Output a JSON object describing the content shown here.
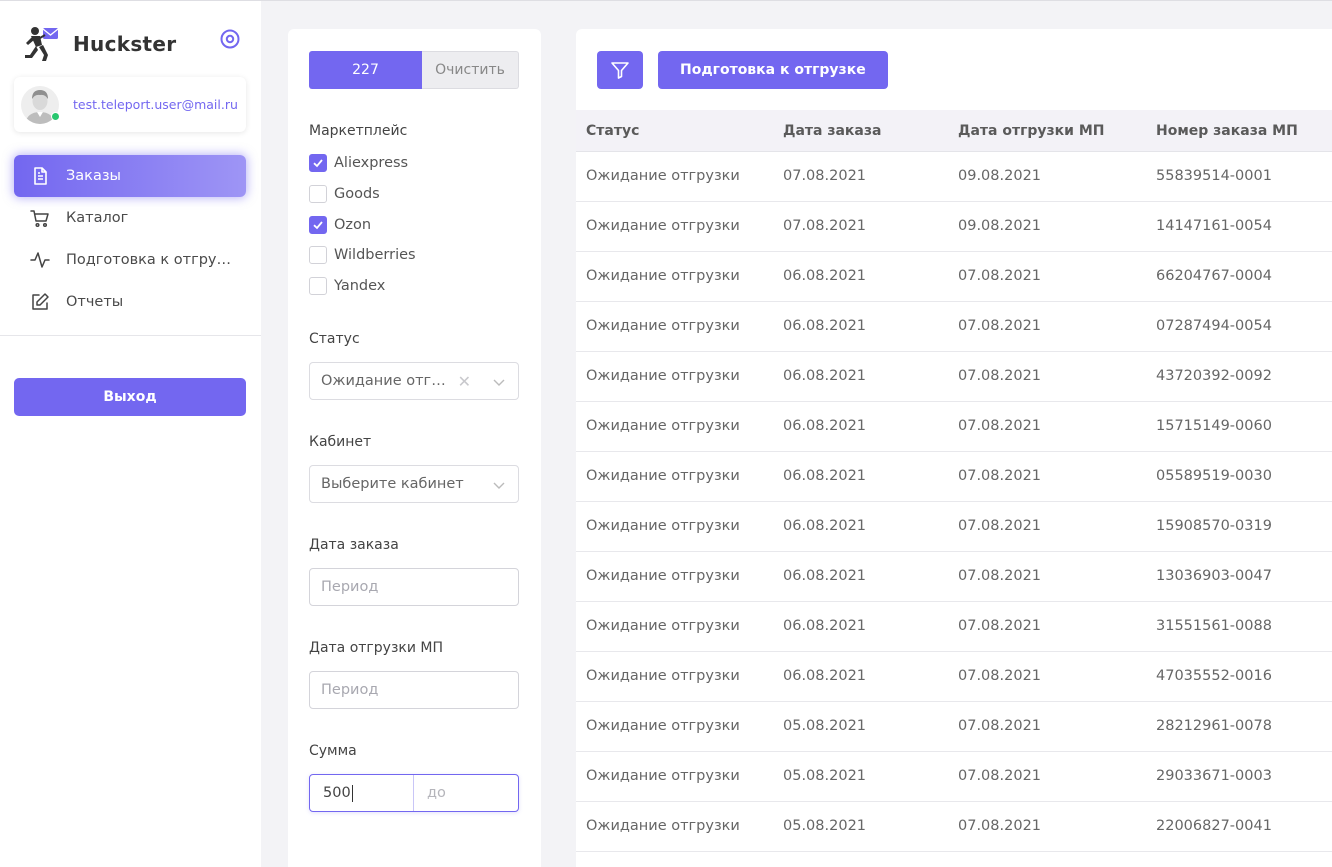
{
  "app": {
    "name": "Huckster"
  },
  "user": {
    "email": "test.teleport.user@mail.ru"
  },
  "nav": {
    "items": [
      {
        "label": "Заказы",
        "icon": "document-icon",
        "active": true
      },
      {
        "label": "Каталог",
        "icon": "cart-icon"
      },
      {
        "label": "Подготовка к отгрузке",
        "icon": "activity-icon"
      },
      {
        "label": "Отчеты",
        "icon": "edit-icon"
      }
    ],
    "logout_label": "Выход"
  },
  "filters": {
    "count_label": "227",
    "clear_label": "Очистить",
    "marketplace": {
      "label": "Маркетплейс",
      "options": [
        {
          "label": "Aliexpress",
          "checked": true
        },
        {
          "label": "Goods",
          "checked": false
        },
        {
          "label": "Ozon",
          "checked": true
        },
        {
          "label": "Wildberries",
          "checked": false
        },
        {
          "label": "Yandex",
          "checked": false
        }
      ]
    },
    "status": {
      "label": "Статус",
      "value": "Ожидание отгрузки"
    },
    "cabinet": {
      "label": "Кабинет",
      "placeholder": "Выберите кабинет"
    },
    "order_date": {
      "label": "Дата заказа",
      "placeholder": "Период"
    },
    "ship_date": {
      "label": "Дата отгрузки МП",
      "placeholder": "Период"
    },
    "amount": {
      "label": "Сумма",
      "from_value": "500",
      "to_placeholder": "до"
    }
  },
  "orders": {
    "prepare_button_label": "Подготовка к отгрузке",
    "columns": [
      "Статус",
      "Дата заказа",
      "Дата отгрузки МП",
      "Номер заказа МП"
    ],
    "rows": [
      [
        "Ожидание отгрузки",
        "07.08.2021",
        "09.08.2021",
        "55839514-0001"
      ],
      [
        "Ожидание отгрузки",
        "07.08.2021",
        "09.08.2021",
        "14147161-0054"
      ],
      [
        "Ожидание отгрузки",
        "06.08.2021",
        "07.08.2021",
        "66204767-0004"
      ],
      [
        "Ожидание отгрузки",
        "06.08.2021",
        "07.08.2021",
        "07287494-0054"
      ],
      [
        "Ожидание отгрузки",
        "06.08.2021",
        "07.08.2021",
        "43720392-0092"
      ],
      [
        "Ожидание отгрузки",
        "06.08.2021",
        "07.08.2021",
        "15715149-0060"
      ],
      [
        "Ожидание отгрузки",
        "06.08.2021",
        "07.08.2021",
        "05589519-0030"
      ],
      [
        "Ожидание отгрузки",
        "06.08.2021",
        "07.08.2021",
        "15908570-0319"
      ],
      [
        "Ожидание отгрузки",
        "06.08.2021",
        "07.08.2021",
        "13036903-0047"
      ],
      [
        "Ожидание отгрузки",
        "06.08.2021",
        "07.08.2021",
        "31551561-0088"
      ],
      [
        "Ожидание отгрузки",
        "06.08.2021",
        "07.08.2021",
        "47035552-0016"
      ],
      [
        "Ожидание отгрузки",
        "05.08.2021",
        "07.08.2021",
        "28212961-0078"
      ],
      [
        "Ожидание отгрузки",
        "05.08.2021",
        "07.08.2021",
        "29033671-0003"
      ],
      [
        "Ожидание отгрузки",
        "05.08.2021",
        "07.08.2021",
        "22006827-0041"
      ]
    ]
  },
  "colors": {
    "accent": "#7367f0",
    "status_online": "#28c76f"
  }
}
